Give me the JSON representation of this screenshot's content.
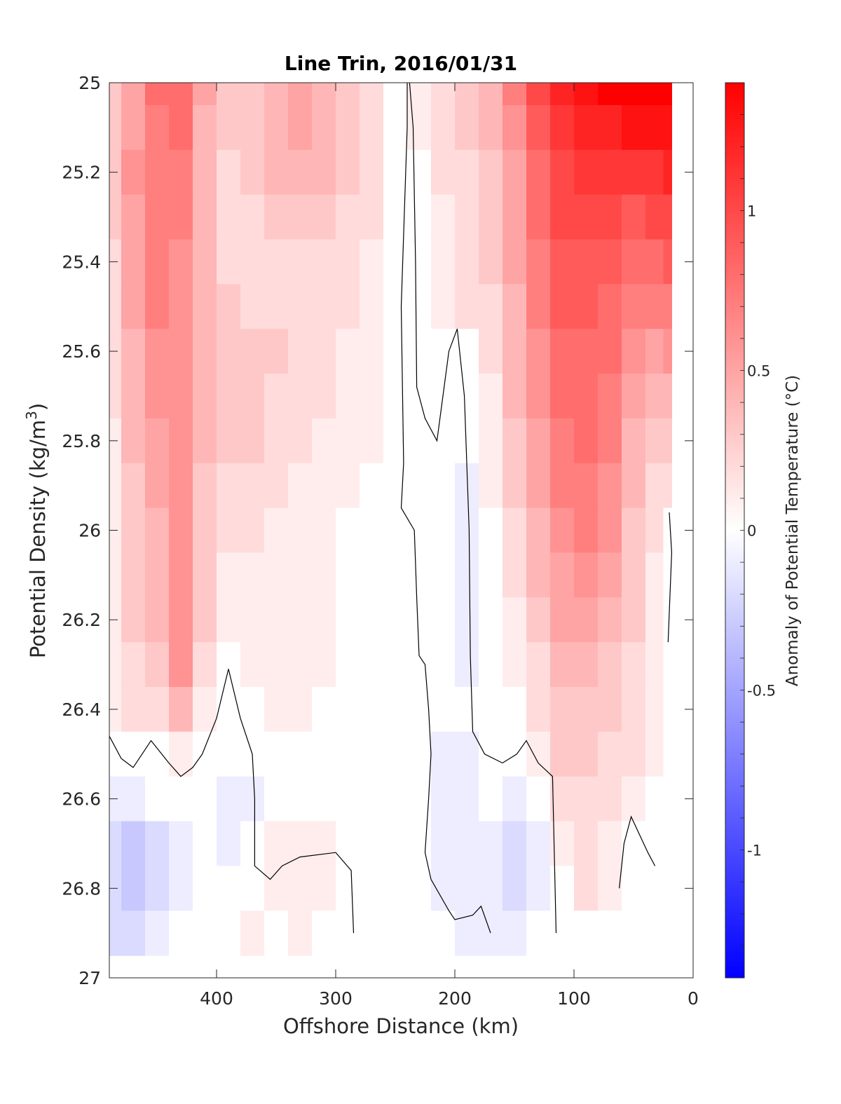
{
  "chart_data": {
    "type": "heatmap",
    "title": "Line Trin, 2016/01/31",
    "xlabel": "Offshore Distance (km)",
    "ylabel_main": "Potential Density (kg/m",
    "ylabel_sup": "3",
    "ylabel_close": ")",
    "xlim": [
      490,
      0
    ],
    "ylim": [
      25,
      27
    ],
    "x_reversed": true,
    "y_reversed": true,
    "xticks": [
      400,
      300,
      200,
      100,
      0
    ],
    "xtick_labels": [
      "400",
      "300",
      "200",
      "100",
      "0"
    ],
    "yticks": [
      25,
      25.2,
      25.4,
      25.6,
      25.8,
      26,
      26.2,
      26.4,
      26.6,
      26.8,
      27
    ],
    "ytick_labels": [
      "25",
      "25.2",
      "25.4",
      "25.6",
      "25.8",
      "26",
      "26.2",
      "26.4",
      "26.6",
      "26.8",
      "27"
    ],
    "colorbar": {
      "label": "Anomaly of Potential Temperature (°C)",
      "range": [
        -1.4,
        1.4
      ],
      "step": 0.1,
      "ticks": [
        1,
        0.5,
        0,
        -0.5,
        -1
      ],
      "tick_labels": [
        "1",
        "0.5",
        "0",
        "-0.5",
        "-1"
      ],
      "color_negative_max": "#0000ff",
      "color_zero": "#ffffff",
      "color_positive_max": "#ff0000"
    },
    "distance_km": [
      490,
      470,
      450,
      430,
      410,
      390,
      370,
      350,
      330,
      310,
      290,
      270,
      250,
      230,
      210,
      190,
      170,
      150,
      130,
      110,
      90,
      70,
      50,
      30,
      20
    ],
    "density": [
      25.0,
      25.1,
      25.2,
      25.3,
      25.4,
      25.5,
      25.6,
      25.7,
      25.8,
      25.9,
      26.0,
      26.1,
      26.2,
      26.3,
      26.4,
      26.5,
      26.6,
      26.7,
      26.8,
      26.9
    ],
    "anomaly": [
      [
        0.3,
        0.55,
        0.8,
        0.85,
        0.5,
        0.3,
        0.35,
        0.45,
        0.5,
        0.45,
        0.3,
        0.2,
        0.05,
        0.1,
        0.25,
        0.3,
        0.4,
        0.7,
        1.0,
        1.2,
        1.3,
        1.4,
        1.4,
        1.4,
        1.4
      ],
      [
        0.3,
        0.55,
        0.75,
        0.8,
        0.45,
        0.3,
        0.35,
        0.45,
        0.5,
        0.45,
        0.3,
        0.2,
        0.05,
        0.1,
        0.25,
        0.3,
        0.4,
        0.65,
        0.95,
        1.15,
        1.2,
        1.25,
        1.3,
        1.3,
        1.35
      ],
      [
        0.3,
        0.6,
        0.75,
        0.75,
        0.45,
        0.25,
        0.3,
        0.4,
        0.45,
        0.4,
        0.3,
        0.2,
        0.05,
        0.05,
        0.2,
        0.25,
        0.35,
        0.55,
        0.85,
        1.05,
        1.1,
        1.1,
        1.1,
        1.15,
        1.2
      ],
      [
        0.3,
        0.55,
        0.7,
        0.7,
        0.4,
        0.2,
        0.25,
        0.3,
        0.35,
        0.3,
        0.25,
        0.2,
        0.05,
        0.05,
        0.15,
        0.25,
        0.3,
        0.5,
        0.8,
        1.0,
        1.0,
        1.0,
        0.95,
        1.0,
        1.05
      ],
      [
        0.25,
        0.5,
        0.7,
        0.65,
        0.4,
        0.25,
        0.25,
        0.25,
        0.25,
        0.25,
        0.25,
        0.15,
        0.05,
        0.05,
        0.1,
        0.2,
        0.3,
        0.5,
        0.75,
        0.95,
        0.95,
        0.9,
        0.85,
        0.85,
        0.9
      ],
      [
        0.25,
        0.5,
        0.7,
        0.6,
        0.45,
        0.3,
        0.25,
        0.25,
        0.2,
        0.2,
        0.2,
        0.15,
        0.05,
        0.05,
        0.1,
        0.2,
        0.25,
        0.45,
        0.7,
        0.9,
        0.9,
        0.85,
        0.75,
        0.7,
        0.75
      ],
      [
        0.2,
        0.45,
        0.65,
        0.6,
        0.45,
        0.35,
        0.3,
        0.3,
        0.2,
        0.2,
        0.15,
        0.1,
        0.05,
        0.05,
        0.05,
        0.0,
        0.2,
        0.4,
        0.65,
        0.85,
        0.85,
        0.8,
        0.65,
        0.55,
        0.6
      ],
      [
        0.2,
        0.4,
        0.6,
        0.6,
        0.4,
        0.35,
        0.3,
        0.25,
        0.25,
        0.2,
        0.15,
        0.1,
        0.05,
        0.0,
        -0.05,
        0.05,
        0.15,
        0.4,
        0.6,
        0.8,
        0.8,
        0.75,
        0.55,
        0.45,
        0.4
      ],
      [
        0.15,
        0.4,
        0.55,
        0.6,
        0.4,
        0.3,
        0.3,
        0.2,
        0.2,
        0.15,
        0.15,
        0.1,
        0.0,
        0.0,
        -0.05,
        -0.05,
        0.1,
        0.35,
        0.55,
        0.75,
        0.8,
        0.7,
        0.45,
        0.35,
        0.3
      ],
      [
        0.15,
        0.35,
        0.5,
        0.6,
        0.35,
        0.25,
        0.25,
        0.2,
        0.15,
        0.15,
        0.1,
        0.05,
        0.0,
        0.0,
        -0.05,
        -0.1,
        0.1,
        0.3,
        0.5,
        0.7,
        0.75,
        0.65,
        0.4,
        0.25,
        0.2
      ],
      [
        0.1,
        0.35,
        0.45,
        0.6,
        0.35,
        0.25,
        0.2,
        0.15,
        0.15,
        0.1,
        0.05,
        0.05,
        0.0,
        0.0,
        -0.05,
        -0.1,
        0.05,
        0.25,
        0.45,
        0.65,
        0.7,
        0.6,
        0.35,
        0.2,
        0.0
      ],
      [
        0.15,
        0.35,
        0.45,
        0.6,
        0.3,
        0.15,
        0.15,
        0.15,
        0.15,
        0.1,
        0.05,
        0.0,
        0.0,
        0.0,
        -0.05,
        -0.1,
        0.05,
        0.2,
        0.4,
        0.55,
        0.6,
        0.55,
        0.3,
        0.15,
        0.0
      ],
      [
        0.15,
        0.3,
        0.4,
        0.65,
        0.3,
        0.1,
        0.1,
        0.1,
        0.1,
        0.1,
        0.05,
        0.0,
        0.0,
        0.0,
        -0.05,
        -0.1,
        0.0,
        0.15,
        0.35,
        0.5,
        0.5,
        0.45,
        0.3,
        0.15,
        0.0
      ],
      [
        0.15,
        0.25,
        0.35,
        0.6,
        0.25,
        0.05,
        0.1,
        0.1,
        0.1,
        0.1,
        0.05,
        0.0,
        0.0,
        0.0,
        -0.05,
        -0.1,
        0.0,
        0.1,
        0.25,
        0.4,
        0.4,
        0.35,
        0.25,
        0.15,
        0.0
      ],
      [
        0.15,
        0.2,
        0.25,
        0.4,
        0.15,
        0.0,
        0.05,
        0.1,
        0.1,
        0.05,
        0.05,
        0.0,
        0.0,
        0.0,
        -0.05,
        -0.05,
        0.0,
        0.05,
        0.2,
        0.35,
        0.35,
        0.3,
        0.25,
        0.1,
        0.0
      ],
      [
        0.0,
        0.05,
        0.05,
        0.1,
        0.05,
        -0.05,
        -0.05,
        0.0,
        0.0,
        0.0,
        0.0,
        0.0,
        0.0,
        0.0,
        -0.1,
        -0.1,
        0.0,
        0.0,
        0.15,
        0.3,
        0.3,
        0.25,
        0.2,
        0.1,
        0.0
      ],
      [
        -0.1,
        -0.1,
        -0.05,
        -0.05,
        -0.05,
        -0.1,
        -0.1,
        0.05,
        0.05,
        0.05,
        0.05,
        0.0,
        0.0,
        -0.05,
        -0.1,
        -0.1,
        -0.05,
        -0.1,
        0.0,
        0.2,
        0.25,
        0.2,
        0.1,
        0.05,
        0.0
      ],
      [
        -0.25,
        -0.35,
        -0.2,
        -0.1,
        0.0,
        -0.1,
        -0.05,
        0.1,
        0.1,
        0.1,
        0.05,
        0.0,
        0.0,
        -0.05,
        -0.1,
        -0.1,
        -0.1,
        -0.2,
        -0.15,
        0.1,
        0.25,
        0.15,
        -0.05,
        0.0,
        0.0
      ],
      [
        -0.25,
        -0.35,
        -0.2,
        -0.1,
        0.0,
        0.05,
        0.05,
        0.1,
        0.15,
        0.1,
        0.05,
        0.0,
        0.0,
        -0.05,
        -0.1,
        -0.1,
        -0.1,
        -0.2,
        -0.1,
        0.05,
        0.2,
        0.1,
        -0.05,
        0.0,
        0.0
      ],
      [
        -0.2,
        -0.25,
        -0.15,
        -0.05,
        0.0,
        0.05,
        0.1,
        0.05,
        0.1,
        0.05,
        0.0,
        0.0,
        0.0,
        0.0,
        -0.05,
        -0.1,
        -0.1,
        -0.1,
        -0.05,
        0.0,
        0.0,
        0.0,
        0.0,
        0.0,
        0.0
      ]
    ],
    "zero_contours": [
      [
        [
          490,
          26.46
        ],
        [
          480,
          26.51
        ],
        [
          470,
          26.53
        ],
        [
          460,
          26.49
        ],
        [
          455,
          26.47
        ],
        [
          440,
          26.52
        ],
        [
          430,
          26.55
        ],
        [
          420,
          26.53
        ],
        [
          412,
          26.5
        ],
        [
          400,
          26.42
        ],
        [
          390,
          26.31
        ],
        [
          380,
          26.42
        ],
        [
          370,
          26.5
        ],
        [
          368,
          26.6
        ],
        [
          368,
          26.75
        ],
        [
          355,
          26.78
        ],
        [
          345,
          26.75
        ],
        [
          330,
          26.73
        ],
        [
          300,
          26.72
        ],
        [
          287,
          26.76
        ],
        [
          285,
          26.9
        ]
      ],
      [
        [
          240,
          25
        ],
        [
          240,
          25.1
        ],
        [
          245,
          25.5
        ],
        [
          243,
          25.85
        ],
        [
          245,
          25.95
        ],
        [
          234,
          26.0
        ],
        [
          232,
          26.15
        ],
        [
          230,
          26.28
        ],
        [
          225,
          26.3
        ],
        [
          222,
          26.4
        ],
        [
          220,
          26.5
        ],
        [
          222,
          26.6
        ],
        [
          225,
          26.72
        ],
        [
          220,
          26.78
        ],
        [
          205,
          26.85
        ],
        [
          200,
          26.87
        ],
        [
          185,
          26.86
        ],
        [
          178,
          26.84
        ],
        [
          170,
          26.9
        ]
      ],
      [
        [
          238,
          25
        ],
        [
          235,
          25.1
        ],
        [
          233,
          25.4
        ],
        [
          232,
          25.68
        ],
        [
          225,
          25.75
        ],
        [
          215,
          25.8
        ],
        [
          205,
          25.6
        ],
        [
          198,
          25.55
        ],
        [
          192,
          25.7
        ],
        [
          188,
          26.0
        ],
        [
          187,
          26.28
        ],
        [
          185,
          26.45
        ],
        [
          175,
          26.5
        ],
        [
          160,
          26.52
        ],
        [
          148,
          26.5
        ],
        [
          140,
          26.47
        ],
        [
          130,
          26.52
        ],
        [
          118,
          26.55
        ],
        [
          115,
          26.9
        ]
      ],
      [
        [
          62,
          26.8
        ],
        [
          58,
          26.7
        ],
        [
          52,
          26.64
        ],
        [
          45,
          26.68
        ],
        [
          38,
          26.72
        ],
        [
          32,
          26.75
        ]
      ],
      [
        [
          20,
          25.96
        ],
        [
          18,
          26.05
        ],
        [
          21,
          26.25
        ]
      ]
    ]
  }
}
